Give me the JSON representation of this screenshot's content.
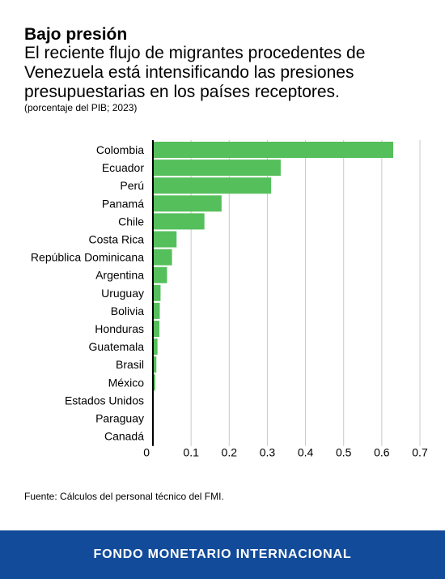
{
  "header": {
    "title": "Bajo presión",
    "subtitle": "El reciente flujo de migrantes procedentes de Venezuela está intensificando las presiones presupuestarias en los países receptores.",
    "unit_note": "(porcentaje del PIB; 2023)"
  },
  "chart_data": {
    "type": "bar",
    "orientation": "horizontal",
    "categories": [
      "Colombia",
      "Ecuador",
      "Perú",
      "Panamá",
      "Chile",
      "Costa Rica",
      "República Dominicana",
      "Argentina",
      "Uruguay",
      "Bolivia",
      "Honduras",
      "Guatemala",
      "Brasil",
      "México",
      "Estados Unidos",
      "Paraguay",
      "Canadá"
    ],
    "values": [
      0.63,
      0.335,
      0.31,
      0.18,
      0.135,
      0.062,
      0.05,
      0.037,
      0.02,
      0.018,
      0.017,
      0.012,
      0.009,
      0.006,
      0.002,
      0.002,
      0.001
    ],
    "xlim": [
      0,
      0.7
    ],
    "xticks": [
      "0",
      "0.1",
      "0.2",
      "0.3",
      "0.4",
      "0.5",
      "0.6",
      "0.7"
    ],
    "bar_color": "#55bf5c",
    "grid": "vertical"
  },
  "source": "Fuente: Cálculos del personal técnico del FMI.",
  "footer": {
    "label": "FONDO MONETARIO INTERNACIONAL",
    "color": "#124b9a"
  }
}
